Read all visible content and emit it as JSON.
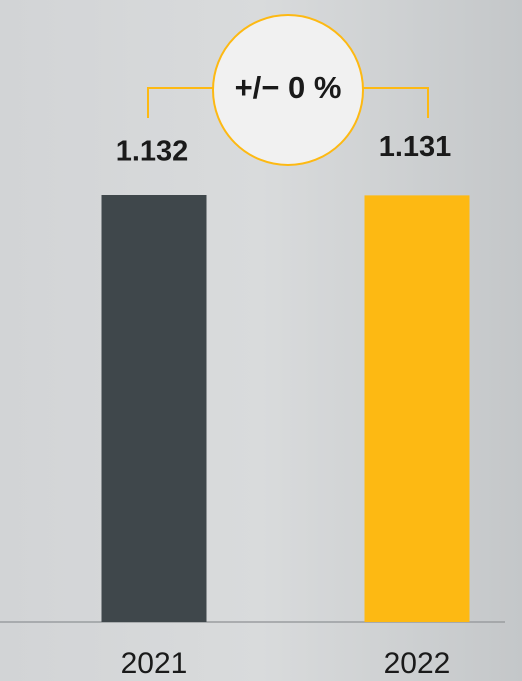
{
  "chart_data": {
    "type": "bar",
    "categories": [
      "2021",
      "2022"
    ],
    "values": [
      1.132,
      1.131
    ],
    "colors": [
      "#3f474b",
      "#fdb913"
    ],
    "annotation": "+/− 0 %"
  }
}
